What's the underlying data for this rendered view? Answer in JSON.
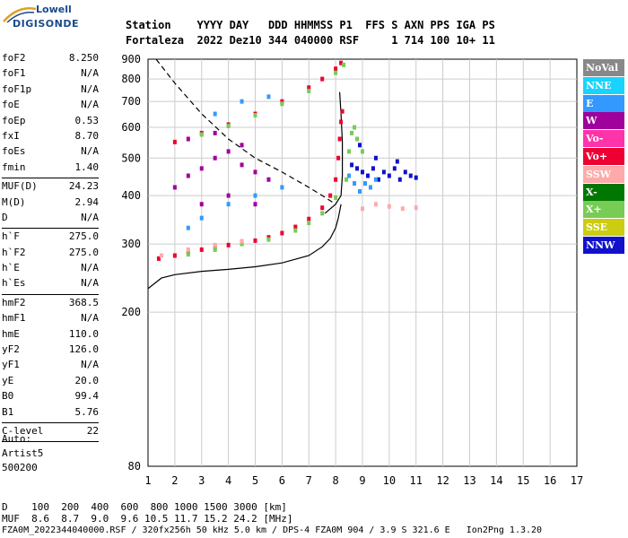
{
  "logo": {
    "line1": "Lowell",
    "line2": "DIGISONDE"
  },
  "header": {
    "line1": "Station    YYYY DAY   DDD HHMMSS P1  FFS S AXN PPS IGA PS",
    "line2": "Fortaleza  2022 Dez10 344 040000 RSF     1 714 100 10+ 11"
  },
  "params": [
    {
      "name": "foF2",
      "value": "8.250"
    },
    {
      "name": "foF1",
      "value": "N/A"
    },
    {
      "name": "foF1p",
      "value": "N/A"
    },
    {
      "name": "foE",
      "value": "N/A"
    },
    {
      "name": "foEp",
      "value": "0.53"
    },
    {
      "name": "fxI",
      "value": "8.70"
    },
    {
      "name": "foEs",
      "value": "N/A"
    },
    {
      "name": "fmin",
      "value": "1.40"
    },
    {
      "sep": true
    },
    {
      "name": "MUF(D)",
      "value": "24.23"
    },
    {
      "name": "M(D)",
      "value": "2.94"
    },
    {
      "name": "D",
      "value": "N/A"
    },
    {
      "sep": true
    },
    {
      "name": "h`F",
      "value": "275.0"
    },
    {
      "name": "h`F2",
      "value": "275.0"
    },
    {
      "name": "h`E",
      "value": "N/A"
    },
    {
      "name": "h`Es",
      "value": "N/A"
    },
    {
      "sep": true
    },
    {
      "name": "hmF2",
      "value": "368.5"
    },
    {
      "name": "hmF1",
      "value": "N/A"
    },
    {
      "name": "hmE",
      "value": "110.0"
    },
    {
      "name": "yF2",
      "value": "126.0"
    },
    {
      "name": "yF1",
      "value": "N/A"
    },
    {
      "name": "yE",
      "value": "20.0"
    },
    {
      "name": "B0",
      "value": "99.4"
    },
    {
      "name": "B1",
      "value": "5.76"
    },
    {
      "sep": true
    },
    {
      "name": "C-level",
      "value": "22"
    },
    {
      "sep": true
    }
  ],
  "auto": {
    "line1": "Auto:",
    "line2": "Artist5",
    "line3": "500200"
  },
  "footer": {
    "line1": "D    100  200  400  600  800 1000 1500 3000 [km]",
    "line2": "MUF  8.6  8.7  9.0  9.6 10.5 11.7 15.2 24.2 [MHz]",
    "line3": "FZA0M_2022344040000.RSF / 320fx256h 50 kHz 5.0 km / DPS-4 FZA0M 904 / 3.9 S 321.6 E   Ion2Png 1.3.20"
  },
  "legend": [
    {
      "label": "NoVal",
      "color": "#888888"
    },
    {
      "label": "NNE",
      "color": "#19d3ff"
    },
    {
      "label": "E",
      "color": "#3399ff"
    },
    {
      "label": "W",
      "color": "#a0009b"
    },
    {
      "label": "Vo-",
      "color": "#ff33aa"
    },
    {
      "label": "Vo+",
      "color": "#ee0033"
    },
    {
      "label": "SSW",
      "color": "#ffaaaa"
    },
    {
      "label": "X-",
      "color": "#007700"
    },
    {
      "label": "X+",
      "color": "#77cc55"
    },
    {
      "label": "SSE",
      "color": "#cccc11"
    },
    {
      "label": "NNW",
      "color": "#1111cc"
    }
  ],
  "chart_data": {
    "type": "scatter",
    "xlabel": "",
    "ylabel": "",
    "xlim": [
      1,
      17
    ],
    "ylim": [
      80,
      900
    ],
    "x_ticks": [
      1,
      2,
      3,
      4,
      5,
      6,
      7,
      8,
      9,
      10,
      11,
      12,
      13,
      14,
      15,
      16,
      17
    ],
    "y_ticks": [
      80,
      200,
      300,
      400,
      500,
      600,
      700,
      800,
      900
    ],
    "y_scale": "log",
    "grid": true,
    "legend_position": "right",
    "series": [
      {
        "name": "Vo+",
        "points": [
          [
            1.4,
            275
          ],
          [
            2.0,
            280
          ],
          [
            2.5,
            285
          ],
          [
            3.0,
            290
          ],
          [
            3.5,
            294
          ],
          [
            4.0,
            298
          ],
          [
            4.5,
            302
          ],
          [
            5.0,
            306
          ],
          [
            5.5,
            312
          ],
          [
            6.0,
            320
          ],
          [
            6.5,
            332
          ],
          [
            7.0,
            348
          ],
          [
            7.5,
            372
          ],
          [
            7.8,
            400
          ],
          [
            8.0,
            440
          ],
          [
            8.1,
            500
          ],
          [
            8.15,
            560
          ],
          [
            8.2,
            620
          ],
          [
            8.25,
            660
          ],
          [
            2.0,
            550
          ],
          [
            3.0,
            580
          ],
          [
            4.0,
            610
          ],
          [
            5.0,
            650
          ],
          [
            6.0,
            700
          ],
          [
            7.0,
            760
          ],
          [
            7.5,
            800
          ],
          [
            8.0,
            850
          ],
          [
            8.2,
            880
          ]
        ]
      },
      {
        "name": "X+",
        "points": [
          [
            2.5,
            282
          ],
          [
            3.5,
            290
          ],
          [
            4.5,
            300
          ],
          [
            5.5,
            308
          ],
          [
            6.5,
            325
          ],
          [
            7.0,
            340
          ],
          [
            7.5,
            360
          ],
          [
            8.0,
            395
          ],
          [
            8.4,
            440
          ],
          [
            8.5,
            520
          ],
          [
            8.6,
            580
          ],
          [
            8.7,
            600
          ],
          [
            8.8,
            560
          ],
          [
            9.0,
            520
          ],
          [
            3.0,
            575
          ],
          [
            4.0,
            605
          ],
          [
            5.0,
            645
          ],
          [
            6.0,
            690
          ],
          [
            7.0,
            745
          ],
          [
            8.0,
            830
          ],
          [
            8.3,
            870
          ]
        ]
      },
      {
        "name": "NNW",
        "points": [
          [
            8.6,
            480
          ],
          [
            8.8,
            470
          ],
          [
            9.0,
            460
          ],
          [
            9.2,
            450
          ],
          [
            9.4,
            470
          ],
          [
            9.6,
            440
          ],
          [
            9.8,
            460
          ],
          [
            10.0,
            450
          ],
          [
            10.2,
            470
          ],
          [
            10.4,
            440
          ],
          [
            10.6,
            460
          ],
          [
            10.8,
            450
          ],
          [
            11.0,
            445
          ],
          [
            8.9,
            540
          ],
          [
            9.5,
            500
          ],
          [
            10.3,
            490
          ]
        ]
      },
      {
        "name": "E",
        "points": [
          [
            8.5,
            450
          ],
          [
            8.7,
            430
          ],
          [
            8.9,
            410
          ],
          [
            9.1,
            430
          ],
          [
            9.3,
            420
          ],
          [
            9.5,
            440
          ],
          [
            2.5,
            330
          ],
          [
            3.0,
            350
          ],
          [
            4.0,
            380
          ],
          [
            5.0,
            400
          ],
          [
            6.0,
            420
          ],
          [
            3.5,
            650
          ],
          [
            4.5,
            700
          ],
          [
            5.5,
            720
          ]
        ]
      },
      {
        "name": "W",
        "points": [
          [
            2.0,
            420
          ],
          [
            2.5,
            450
          ],
          [
            3.0,
            470
          ],
          [
            3.5,
            500
          ],
          [
            4.0,
            520
          ],
          [
            4.5,
            480
          ],
          [
            5.0,
            460
          ],
          [
            5.5,
            440
          ],
          [
            3.0,
            380
          ],
          [
            4.0,
            400
          ],
          [
            5.0,
            380
          ],
          [
            2.5,
            560
          ],
          [
            3.5,
            580
          ],
          [
            4.5,
            540
          ]
        ]
      },
      {
        "name": "SSW",
        "points": [
          [
            1.5,
            280
          ],
          [
            2.5,
            290
          ],
          [
            3.5,
            298
          ],
          [
            4.5,
            305
          ],
          [
            9.0,
            370
          ],
          [
            9.5,
            380
          ],
          [
            10.0,
            375
          ],
          [
            10.5,
            370
          ],
          [
            11.0,
            372
          ]
        ]
      }
    ],
    "virtual_height_trace": [
      [
        1.0,
        230
      ],
      [
        1.5,
        245
      ],
      [
        2.0,
        250
      ],
      [
        3.0,
        255
      ],
      [
        4.0,
        258
      ],
      [
        5.0,
        262
      ],
      [
        6.0,
        268
      ],
      [
        7.0,
        280
      ],
      [
        7.5,
        295
      ],
      [
        7.8,
        310
      ],
      [
        8.0,
        330
      ],
      [
        8.1,
        350
      ],
      [
        8.2,
        380
      ]
    ],
    "profile_trace": [
      [
        7.6,
        360
      ],
      [
        8.0,
        380
      ],
      [
        8.2,
        400
      ],
      [
        8.25,
        450
      ],
      [
        8.25,
        550
      ],
      [
        8.2,
        650
      ],
      [
        8.15,
        740
      ]
    ],
    "muf_trace": [
      [
        1.3,
        900
      ],
      [
        2.0,
        780
      ],
      [
        3.0,
        650
      ],
      [
        4.0,
        560
      ],
      [
        5.0,
        500
      ],
      [
        6.0,
        460
      ],
      [
        7.0,
        420
      ],
      [
        7.5,
        400
      ],
      [
        8.0,
        380
      ]
    ]
  }
}
